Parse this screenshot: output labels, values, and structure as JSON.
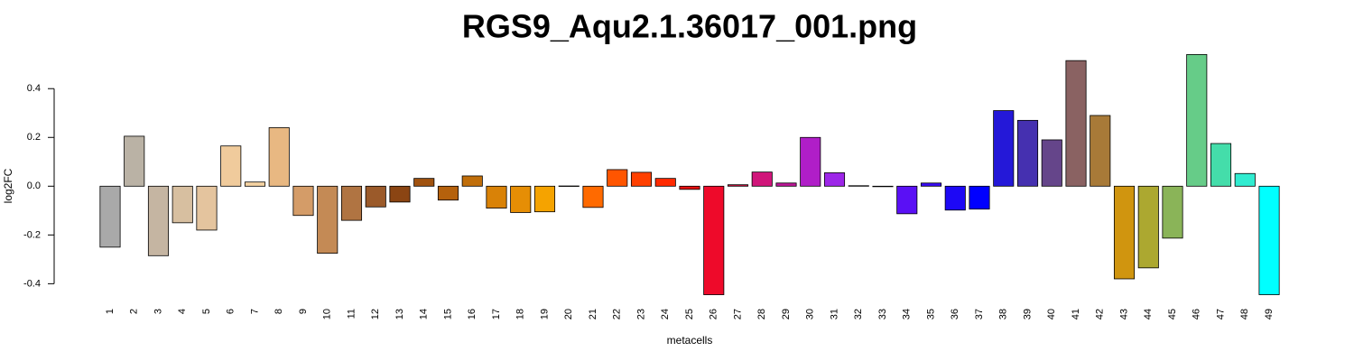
{
  "chart_data": {
    "type": "bar",
    "title": "RGS9_Aqu2.1.36017_001.png",
    "x_label": "metacells",
    "y_label": "log2FC",
    "categories": [
      "1",
      "2",
      "3",
      "4",
      "5",
      "6",
      "7",
      "8",
      "9",
      "10",
      "11",
      "12",
      "13",
      "14",
      "15",
      "16",
      "17",
      "18",
      "19",
      "20",
      "21",
      "22",
      "23",
      "24",
      "25",
      "26",
      "27",
      "28",
      "29",
      "30",
      "31",
      "32",
      "33",
      "34",
      "35",
      "36",
      "37",
      "38",
      "39",
      "40",
      "41",
      "42",
      "43",
      "44",
      "45",
      "46",
      "47",
      "48",
      "49"
    ],
    "values": [
      -0.25,
      0.205,
      -0.285,
      -0.15,
      -0.18,
      0.165,
      0.017,
      0.24,
      -0.12,
      -0.275,
      -0.14,
      -0.085,
      -0.065,
      0.032,
      -0.057,
      0.042,
      -0.09,
      -0.108,
      -0.105,
      0.001,
      -0.087,
      0.068,
      0.057,
      0.032,
      -0.013,
      -0.445,
      0.006,
      0.058,
      0.013,
      0.2,
      0.055,
      0.002,
      -0.002,
      -0.113,
      0.013,
      -0.098,
      -0.094,
      0.31,
      0.27,
      0.19,
      0.515,
      0.29,
      -0.38,
      -0.335,
      -0.213,
      0.54,
      0.175,
      0.052,
      -0.445
    ],
    "colors": [
      "#a9a9a9",
      "#bab2a5",
      "#c5b5a2",
      "#d7bfa0",
      "#e4c49e",
      "#f0cb9c",
      "#f6d3a2",
      "#e8b882",
      "#d49c68",
      "#c48a55",
      "#b07442",
      "#9b5a2a",
      "#8b4513",
      "#a0520f",
      "#b5610c",
      "#c06e0a",
      "#d98207",
      "#e68e05",
      "#f5a300",
      "#ff8c00",
      "#ff6a00",
      "#ff5500",
      "#ff4000",
      "#ff2a00",
      "#e61010",
      "#ee0a2a",
      "#d01040",
      "#d0157a",
      "#bd1898",
      "#b01ec8",
      "#9d26e8",
      "#7a20f0",
      "#6618f2",
      "#5a10f5",
      "#3a0cf5",
      "#1d08f5",
      "#0000ff",
      "#2418d8",
      "#4530b0",
      "#65458a",
      "#8a6262",
      "#a87a38",
      "#d0950f",
      "#aca830",
      "#8ab458",
      "#66cc88",
      "#44ddaa",
      "#30ecd0",
      "#00ffff"
    ],
    "ylim": [
      -0.48,
      0.56
    ],
    "yticks": [
      -0.4,
      -0.2,
      {
        "value": 0,
        "label": "0.0"
      },
      0.2,
      0.4
    ],
    "grid": false
  }
}
